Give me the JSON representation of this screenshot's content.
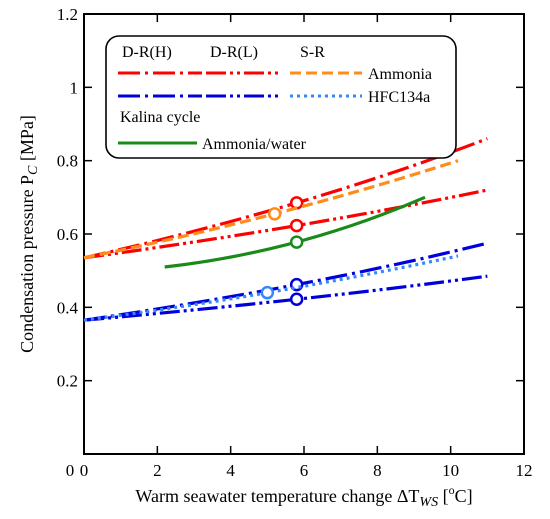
{
  "chart_data": {
    "type": "line",
    "xlabel": "Warm seawater temperature change ΔT",
    "xlabel_sub": "WS",
    "xlabel_unit_open": " [",
    "xlabel_unit_sup": "o",
    "xlabel_unit_close": "C]",
    "ylabel": "Condensation pressure P",
    "ylabel_sub": "C",
    "ylabel_unit": " [MPa]",
    "xlim": [
      0,
      12
    ],
    "ylim": [
      0,
      1.2
    ],
    "xticks": [
      0,
      2,
      4,
      6,
      8,
      10,
      12
    ],
    "yticks": [
      0.2,
      0.4,
      0.6,
      0.8,
      1.0,
      1.2
    ],
    "ytick_labels": [
      "0.2",
      "0.4",
      "0.6",
      "0.8",
      "1",
      "1.2"
    ],
    "grid": false,
    "colors": {
      "ammonia": "#ff0000",
      "ammonia_sr": "#ff8c1a",
      "hfc": "#0000dd",
      "hfc_sr": "#3388ff",
      "kalina": "#1a8a1a"
    },
    "legend": {
      "placement": "top-left",
      "header_dr_h": "D-R(H)",
      "header_dr_l": "D-R(L)",
      "header_sr": "S-R",
      "row_ammonia": "Ammonia",
      "row_hfc": "HFC134a",
      "kalina_title": "Kalina cycle",
      "row_kalina": "Ammonia/water"
    },
    "series": [
      {
        "id": "amm-drh",
        "color_key": "ammonia",
        "dash": "dashdot",
        "x": [
          0,
          5.8,
          11
        ],
        "y": [
          0.535,
          0.685,
          0.86
        ],
        "marker_x": 5.8,
        "marker_y": 0.685
      },
      {
        "id": "amm-drl",
        "color_key": "ammonia",
        "dash": "dashdotdot",
        "x": [
          0,
          5.8,
          11
        ],
        "y": [
          0.535,
          0.623,
          0.72
        ],
        "marker_x": 5.8,
        "marker_y": 0.623
      },
      {
        "id": "amm-sr",
        "color_key": "ammonia_sr",
        "dash": "dash",
        "x": [
          0,
          5.2,
          10.2
        ],
        "y": [
          0.535,
          0.655,
          0.8
        ],
        "marker_x": 5.2,
        "marker_y": 0.655
      },
      {
        "id": "hfc-drh",
        "color_key": "hfc",
        "dash": "dashdot",
        "x": [
          0,
          5.8,
          11
        ],
        "y": [
          0.365,
          0.462,
          0.575
        ],
        "marker_x": 5.8,
        "marker_y": 0.462
      },
      {
        "id": "hfc-drl",
        "color_key": "hfc",
        "dash": "dashdotdot",
        "x": [
          0,
          5.8,
          11
        ],
        "y": [
          0.365,
          0.422,
          0.485
        ],
        "marker_x": 5.8,
        "marker_y": 0.422
      },
      {
        "id": "hfc-sr",
        "color_key": "hfc_sr",
        "dash": "dot",
        "x": [
          0,
          5.0,
          10.2
        ],
        "y": [
          0.365,
          0.44,
          0.54
        ],
        "marker_x": 5.0,
        "marker_y": 0.44
      },
      {
        "id": "kalina",
        "color_key": "kalina",
        "dash": "solid",
        "x": [
          2.2,
          5.8,
          9.3
        ],
        "y": [
          0.51,
          0.578,
          0.7
        ],
        "marker_x": 5.8,
        "marker_y": 0.578
      }
    ]
  }
}
